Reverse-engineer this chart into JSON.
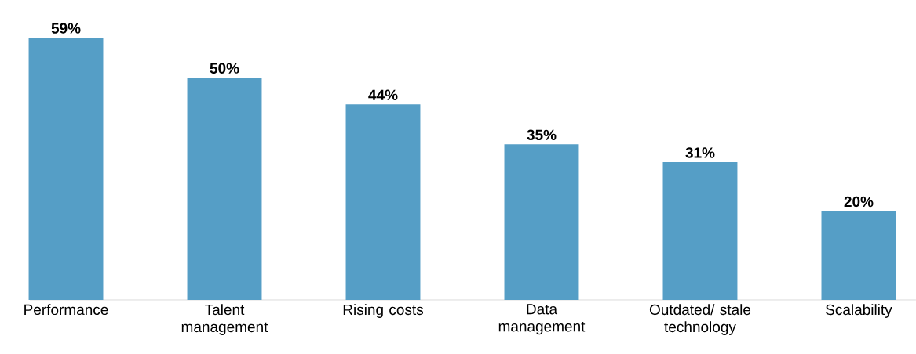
{
  "chart_data": {
    "type": "bar",
    "categories": [
      "Performance",
      "Talent management",
      "Rising costs",
      "Data management",
      "Outdated/ stale technology",
      "Scalability"
    ],
    "values": [
      59,
      50,
      44,
      35,
      31,
      20
    ],
    "value_labels": [
      "59%",
      "50%",
      "44%",
      "35%",
      "31%",
      "20%"
    ],
    "color": "#559ec6"
  }
}
